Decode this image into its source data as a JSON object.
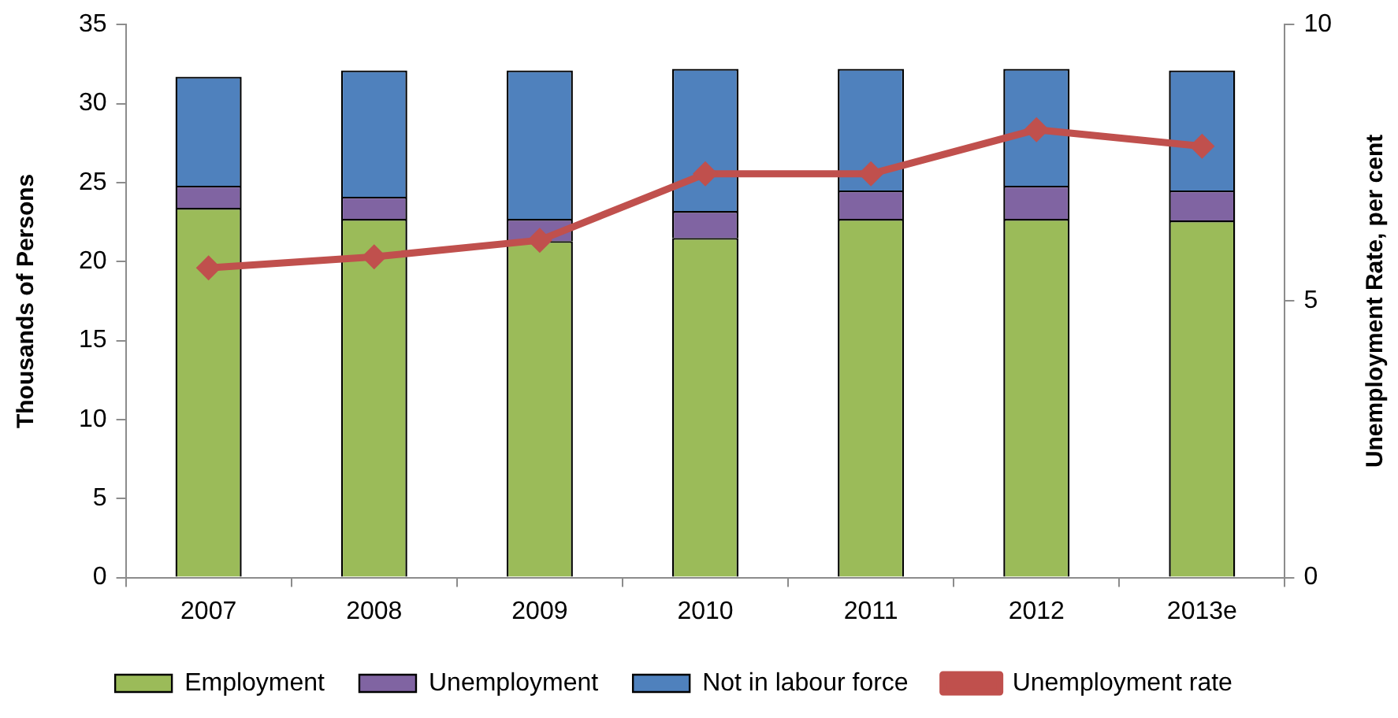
{
  "chart_data": {
    "type": "bar",
    "stacked": true,
    "categories": [
      "2007",
      "2008",
      "2009",
      "2010",
      "2011",
      "2012",
      "2013e"
    ],
    "series": [
      {
        "name": "Employment",
        "color": "#9bbb59",
        "values": [
          23.4,
          22.7,
          21.3,
          21.5,
          22.7,
          22.7,
          22.6
        ]
      },
      {
        "name": "Unemployment",
        "color": "#8064a2",
        "values": [
          1.4,
          1.4,
          1.4,
          1.7,
          1.8,
          2.1,
          1.9
        ]
      },
      {
        "name": "Not in labour force",
        "color": "#4f81bd",
        "values": [
          6.9,
          8.0,
          9.4,
          9.0,
          7.7,
          7.4,
          7.6
        ]
      },
      {
        "name": "Unemployment rate",
        "type": "line",
        "axis": "y2",
        "color": "#c0504d",
        "values": [
          5.6,
          5.8,
          6.1,
          7.3,
          7.3,
          8.1,
          7.8
        ]
      }
    ],
    "ylabel": "Thousands of Persons",
    "y2label": "Unemployment Rate, per cent",
    "ylim": [
      0,
      35
    ],
    "yticks": [
      0,
      5,
      10,
      15,
      20,
      25,
      30,
      35
    ],
    "y2lim": [
      0,
      10
    ],
    "y2ticks": [
      0,
      5,
      10
    ],
    "marker": "diamond",
    "line_style": "solid",
    "grid": false,
    "legend": "bottom"
  }
}
